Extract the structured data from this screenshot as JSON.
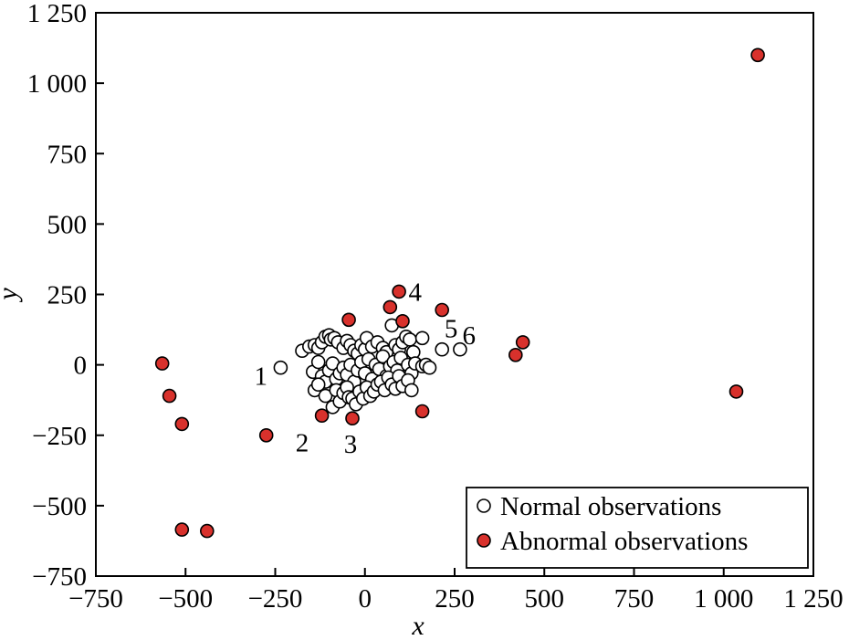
{
  "chart_data": {
    "type": "scatter",
    "title": "",
    "xlabel": "x",
    "ylabel": "y",
    "xlim": [
      -750,
      1250
    ],
    "ylim": [
      -750,
      1250
    ],
    "xticks": [
      -750,
      -500,
      -250,
      0,
      250,
      500,
      750,
      1000,
      1250
    ],
    "xtick_labels": [
      "−750",
      "−500",
      "−250",
      "0",
      "250",
      "500",
      "750",
      "1 000",
      "1 250"
    ],
    "yticks": [
      -750,
      -500,
      -250,
      0,
      250,
      500,
      750,
      1000,
      1250
    ],
    "ytick_labels": [
      "−750",
      "−500",
      "−250",
      "0",
      "250",
      "500",
      "750",
      "1 000",
      "1 250"
    ],
    "grid": false,
    "legend_position": "bottom-right",
    "series": [
      {
        "name": "Normal observations",
        "marker": "open-circle",
        "color": "#ffffff",
        "points": [
          [
            -235,
            -10
          ],
          [
            -175,
            50
          ],
          [
            -155,
            65
          ],
          [
            -140,
            70
          ],
          [
            -130,
            60
          ],
          [
            -120,
            80
          ],
          [
            -110,
            100
          ],
          [
            -100,
            105
          ],
          [
            -95,
            90
          ],
          [
            -85,
            95
          ],
          [
            -75,
            80
          ],
          [
            -60,
            60
          ],
          [
            -50,
            85
          ],
          [
            -40,
            70
          ],
          [
            -30,
            50
          ],
          [
            -20,
            40
          ],
          [
            -10,
            70
          ],
          [
            0,
            55
          ],
          [
            5,
            95
          ],
          [
            20,
            65
          ],
          [
            35,
            80
          ],
          [
            50,
            60
          ],
          [
            60,
            45
          ],
          [
            75,
            140
          ],
          [
            85,
            70
          ],
          [
            95,
            55
          ],
          [
            105,
            80
          ],
          [
            115,
            100
          ],
          [
            125,
            90
          ],
          [
            135,
            45
          ],
          [
            160,
            95
          ],
          [
            215,
            55
          ],
          [
            265,
            55
          ],
          [
            -145,
            -25
          ],
          [
            -130,
            10
          ],
          [
            -120,
            -40
          ],
          [
            -110,
            -60
          ],
          [
            -100,
            -20
          ],
          [
            -90,
            5
          ],
          [
            -80,
            -50
          ],
          [
            -70,
            -30
          ],
          [
            -60,
            -10
          ],
          [
            -50,
            -35
          ],
          [
            -40,
            0
          ],
          [
            -30,
            -60
          ],
          [
            -20,
            -20
          ],
          [
            -10,
            10
          ],
          [
            0,
            -30
          ],
          [
            10,
            20
          ],
          [
            20,
            -50
          ],
          [
            30,
            0
          ],
          [
            40,
            -15
          ],
          [
            50,
            30
          ],
          [
            60,
            -40
          ],
          [
            70,
            -5
          ],
          [
            80,
            10
          ],
          [
            90,
            -20
          ],
          [
            100,
            25
          ],
          [
            110,
            -60
          ],
          [
            120,
            0
          ],
          [
            130,
            -30
          ],
          [
            140,
            5
          ],
          [
            160,
            -5
          ],
          [
            170,
            0
          ],
          [
            180,
            -10
          ],
          [
            -140,
            -90
          ],
          [
            -130,
            -70
          ],
          [
            -110,
            -110
          ],
          [
            -90,
            -150
          ],
          [
            -80,
            -90
          ],
          [
            -70,
            -130
          ],
          [
            -60,
            -100
          ],
          [
            -50,
            -80
          ],
          [
            -45,
            -115
          ],
          [
            -35,
            -120
          ],
          [
            -25,
            -140
          ],
          [
            -15,
            -95
          ],
          [
            -5,
            -120
          ],
          [
            5,
            -80
          ],
          [
            15,
            -110
          ],
          [
            25,
            -95
          ],
          [
            35,
            -70
          ],
          [
            45,
            -60
          ],
          [
            55,
            -90
          ],
          [
            65,
            -45
          ],
          [
            75,
            -70
          ],
          [
            85,
            -85
          ],
          [
            95,
            -40
          ],
          [
            105,
            -75
          ],
          [
            120,
            -55
          ],
          [
            130,
            -90
          ]
        ]
      },
      {
        "name": "Abnormal observations",
        "marker": "filled-circle",
        "color": "#d8312c",
        "points": [
          [
            -565,
            5
          ],
          [
            -545,
            -110
          ],
          [
            -510,
            -210
          ],
          [
            -510,
            -585
          ],
          [
            -440,
            -590
          ],
          [
            -275,
            -250
          ],
          [
            -120,
            -180
          ],
          [
            -45,
            160
          ],
          [
            -35,
            -190
          ],
          [
            70,
            205
          ],
          [
            95,
            260
          ],
          [
            105,
            155
          ],
          [
            160,
            -165
          ],
          [
            215,
            195
          ],
          [
            420,
            35
          ],
          [
            440,
            80
          ],
          [
            1035,
            -95
          ],
          [
            1095,
            1100
          ]
        ]
      }
    ],
    "annotations": [
      {
        "text": "1",
        "x": -290,
        "y": -38
      },
      {
        "text": "2",
        "x": -175,
        "y": -275
      },
      {
        "text": "3",
        "x": -40,
        "y": -280
      },
      {
        "text": "4",
        "x": 140,
        "y": 260
      },
      {
        "text": "5",
        "x": 240,
        "y": 130
      },
      {
        "text": "6",
        "x": 290,
        "y": 105
      }
    ]
  }
}
